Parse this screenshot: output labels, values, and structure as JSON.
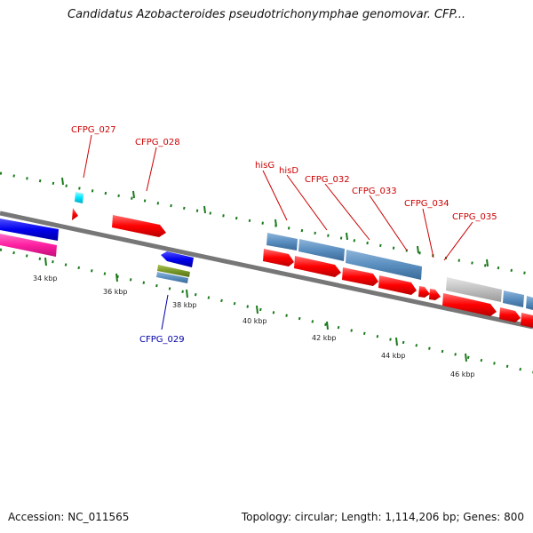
{
  "title": "Candidatus Azobacteroides pseudotrichonymphae genomovar. CFP...",
  "footer": {
    "accession": "Accession: NC_011565",
    "summary": "Topology: circular; Length: 1,114,206 bp; Genes: 800"
  },
  "scale_labels": [
    "34 kbp",
    "36 kbp",
    "38 kbp",
    "40 kbp",
    "42 kbp",
    "44 kbp",
    "46 kbp"
  ],
  "gene_labels": [
    "CFPG_027",
    "CFPG_028",
    "hisG",
    "hisD",
    "CFPG_032",
    "CFPG_033",
    "CFPG_034",
    "CFPG_035",
    "CFPG_029"
  ],
  "colors": {
    "forward_gene": "#ff0000",
    "reverse_gene": "#0000ee",
    "steel_gene": "#5a8fc0",
    "pink_gene": "#ff1fa0",
    "olive_gene": "#7a9a2a",
    "gray_gene": "#c0c0c0",
    "cyan_gene": "#00e5ff",
    "backbone": "#777777",
    "tick": "#1a7a1a",
    "label_forward": "#cc0000",
    "label_reverse": "#0000aa"
  }
}
